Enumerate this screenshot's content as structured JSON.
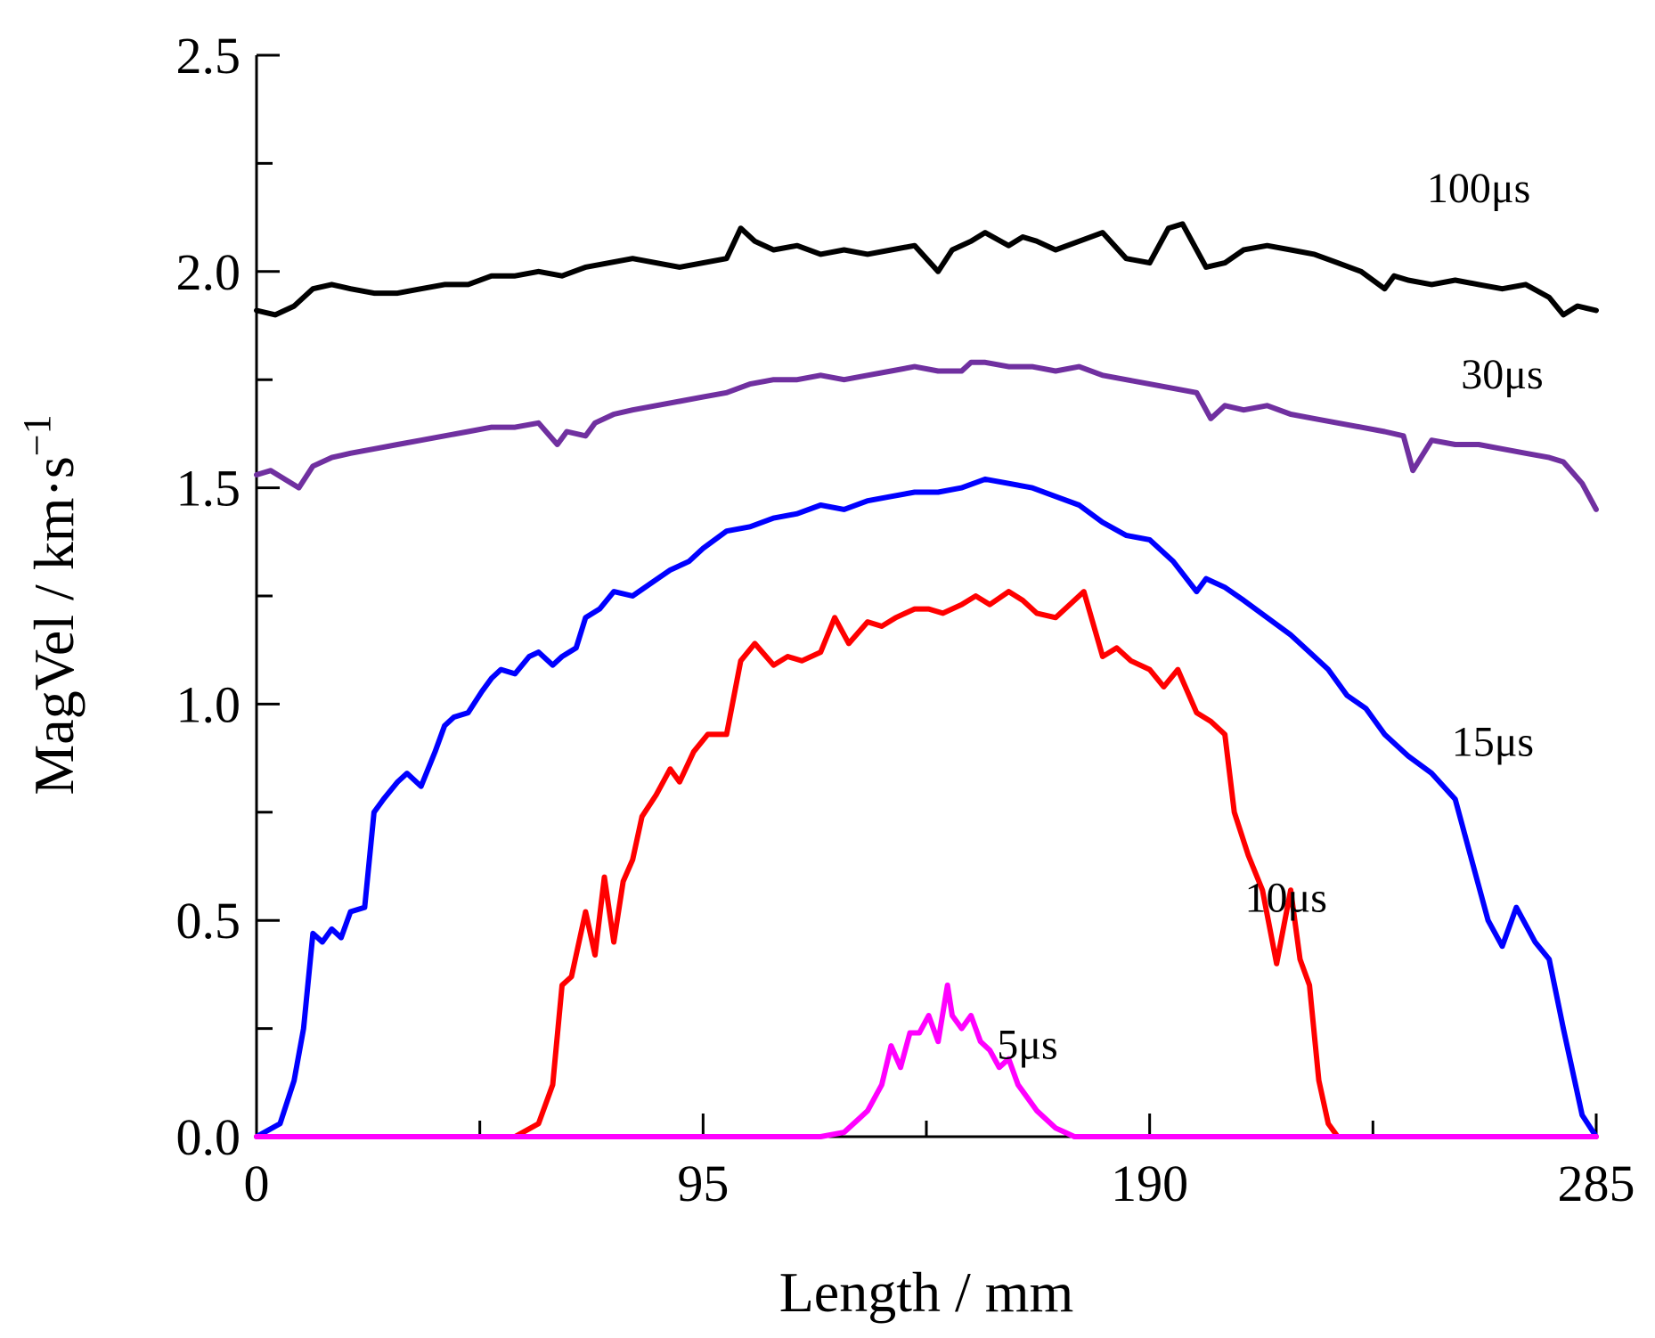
{
  "chart_data": {
    "type": "line",
    "title": "",
    "xlabel": "Length / mm",
    "ylabel": "MagVel / km·s",
    "ylabel_superscript": "−1",
    "xlim": [
      0,
      285
    ],
    "ylim": [
      0,
      2.5
    ],
    "x_ticks": [
      0,
      95,
      190,
      285
    ],
    "x_tick_labels": [
      "0",
      "95",
      "190",
      "285"
    ],
    "x_minor_ticks": [
      47.5,
      142.5,
      237.5
    ],
    "y_ticks": [
      0,
      0.5,
      1.0,
      1.5,
      2.0,
      2.5
    ],
    "y_tick_labels": [
      "0.0",
      "0.5",
      "1.0",
      "1.5",
      "2.0",
      "2.5"
    ],
    "y_minor_ticks": [
      0.25,
      0.75,
      1.25,
      1.75,
      2.25
    ],
    "grid": false,
    "series": [
      {
        "name": "100μs",
        "color": "#000000",
        "label_at": [
          260,
          2.16
        ],
        "x": [
          0,
          4,
          8,
          12,
          16,
          20,
          25,
          30,
          35,
          40,
          45,
          50,
          55,
          60,
          65,
          70,
          75,
          80,
          85,
          90,
          95,
          100,
          103,
          106,
          110,
          115,
          120,
          125,
          130,
          135,
          140,
          145,
          148,
          152,
          155,
          160,
          163,
          166,
          170,
          175,
          180,
          185,
          190,
          194,
          197,
          202,
          206,
          210,
          215,
          220,
          225,
          230,
          235,
          240,
          242,
          245,
          250,
          255,
          260,
          265,
          270,
          275,
          278,
          281,
          285
        ],
        "values": [
          1.91,
          1.9,
          1.92,
          1.96,
          1.97,
          1.96,
          1.95,
          1.95,
          1.96,
          1.97,
          1.97,
          1.99,
          1.99,
          2.0,
          1.99,
          2.01,
          2.02,
          2.03,
          2.02,
          2.01,
          2.02,
          2.03,
          2.1,
          2.07,
          2.05,
          2.06,
          2.04,
          2.05,
          2.04,
          2.05,
          2.06,
          2.0,
          2.05,
          2.07,
          2.09,
          2.06,
          2.08,
          2.07,
          2.05,
          2.07,
          2.09,
          2.03,
          2.02,
          2.1,
          2.11,
          2.01,
          2.02,
          2.05,
          2.06,
          2.05,
          2.04,
          2.02,
          2.0,
          1.96,
          1.99,
          1.98,
          1.97,
          1.98,
          1.97,
          1.96,
          1.97,
          1.94,
          1.9,
          1.92,
          1.91
        ]
      },
      {
        "name": "30μs",
        "color": "#7030a0",
        "label_at": [
          265,
          1.73
        ],
        "x": [
          0,
          3,
          6,
          9,
          12,
          16,
          20,
          25,
          30,
          35,
          40,
          45,
          50,
          55,
          60,
          64,
          66,
          70,
          72,
          76,
          80,
          85,
          90,
          95,
          100,
          105,
          110,
          115,
          120,
          125,
          130,
          135,
          140,
          145,
          150,
          152,
          155,
          160,
          165,
          170,
          175,
          180,
          185,
          190,
          195,
          200,
          203,
          206,
          210,
          215,
          220,
          225,
          230,
          235,
          240,
          244,
          246,
          250,
          255,
          260,
          265,
          270,
          275,
          278,
          282,
          285
        ],
        "values": [
          1.53,
          1.54,
          1.52,
          1.5,
          1.55,
          1.57,
          1.58,
          1.59,
          1.6,
          1.61,
          1.62,
          1.63,
          1.64,
          1.64,
          1.65,
          1.6,
          1.63,
          1.62,
          1.65,
          1.67,
          1.68,
          1.69,
          1.7,
          1.71,
          1.72,
          1.74,
          1.75,
          1.75,
          1.76,
          1.75,
          1.76,
          1.77,
          1.78,
          1.77,
          1.77,
          1.79,
          1.79,
          1.78,
          1.78,
          1.77,
          1.78,
          1.76,
          1.75,
          1.74,
          1.73,
          1.72,
          1.66,
          1.69,
          1.68,
          1.69,
          1.67,
          1.66,
          1.65,
          1.64,
          1.63,
          1.62,
          1.54,
          1.61,
          1.6,
          1.6,
          1.59,
          1.58,
          1.57,
          1.56,
          1.51,
          1.45
        ]
      },
      {
        "name": "15μs",
        "color": "#0000ff",
        "label_at": [
          263,
          0.88
        ],
        "x": [
          0,
          5,
          8,
          10,
          12,
          14,
          16,
          18,
          20,
          23,
          25,
          27,
          30,
          32,
          35,
          38,
          40,
          42,
          45,
          48,
          50,
          52,
          55,
          58,
          60,
          63,
          65,
          68,
          70,
          73,
          76,
          80,
          84,
          88,
          92,
          95,
          100,
          105,
          110,
          115,
          120,
          125,
          130,
          135,
          140,
          145,
          150,
          155,
          160,
          165,
          170,
          175,
          180,
          185,
          190,
          195,
          200,
          202,
          206,
          210,
          215,
          220,
          224,
          228,
          232,
          236,
          240,
          245,
          250,
          255,
          258,
          262,
          265,
          268,
          272,
          275,
          278,
          282,
          285
        ],
        "values": [
          0.0,
          0.03,
          0.13,
          0.25,
          0.47,
          0.45,
          0.48,
          0.46,
          0.52,
          0.53,
          0.75,
          0.78,
          0.82,
          0.84,
          0.81,
          0.89,
          0.95,
          0.97,
          0.98,
          1.03,
          1.06,
          1.08,
          1.07,
          1.11,
          1.12,
          1.09,
          1.11,
          1.13,
          1.2,
          1.22,
          1.26,
          1.25,
          1.28,
          1.31,
          1.33,
          1.36,
          1.4,
          1.41,
          1.43,
          1.44,
          1.46,
          1.45,
          1.47,
          1.48,
          1.49,
          1.49,
          1.5,
          1.52,
          1.51,
          1.5,
          1.48,
          1.46,
          1.42,
          1.39,
          1.38,
          1.33,
          1.26,
          1.29,
          1.27,
          1.24,
          1.2,
          1.16,
          1.12,
          1.08,
          1.02,
          0.99,
          0.93,
          0.88,
          0.84,
          0.78,
          0.66,
          0.5,
          0.44,
          0.53,
          0.45,
          0.41,
          0.25,
          0.05,
          0.0
        ]
      },
      {
        "name": "10μs",
        "color": "#ff0000",
        "label_at": [
          219,
          0.52
        ],
        "x": [
          0,
          40,
          55,
          60,
          63,
          65,
          67,
          70,
          72,
          74,
          76,
          78,
          80,
          82,
          85,
          88,
          90,
          93,
          96,
          100,
          103,
          106,
          110,
          113,
          116,
          120,
          123,
          126,
          130,
          133,
          136,
          140,
          143,
          146,
          150,
          153,
          156,
          160,
          163,
          166,
          170,
          173,
          176,
          180,
          183,
          186,
          190,
          193,
          196,
          200,
          203,
          206,
          208,
          211,
          214,
          217,
          220,
          222,
          224,
          226,
          228,
          230,
          232,
          235,
          240,
          285
        ],
        "values": [
          0.0,
          0.0,
          0.0,
          0.03,
          0.12,
          0.35,
          0.37,
          0.52,
          0.42,
          0.6,
          0.45,
          0.59,
          0.64,
          0.74,
          0.79,
          0.85,
          0.82,
          0.89,
          0.93,
          0.93,
          1.1,
          1.14,
          1.09,
          1.11,
          1.1,
          1.12,
          1.2,
          1.14,
          1.19,
          1.18,
          1.2,
          1.22,
          1.22,
          1.21,
          1.23,
          1.25,
          1.23,
          1.26,
          1.24,
          1.21,
          1.2,
          1.23,
          1.26,
          1.11,
          1.13,
          1.1,
          1.08,
          1.04,
          1.08,
          0.98,
          0.96,
          0.93,
          0.75,
          0.65,
          0.57,
          0.4,
          0.57,
          0.41,
          0.35,
          0.13,
          0.03,
          0.0,
          0.0,
          0.0,
          0.0,
          0.0
        ],
        "note": ""
      },
      {
        "name": "5μs",
        "color": "#ff00ff",
        "label_at": [
          164,
          0.18
        ],
        "x": [
          0,
          120,
          125,
          128,
          130,
          133,
          135,
          137,
          139,
          141,
          143,
          145,
          147,
          148,
          150,
          152,
          154,
          156,
          158,
          160,
          162,
          164,
          166,
          168,
          170,
          172,
          174,
          176,
          178,
          180,
          185,
          285
        ],
        "values": [
          0.0,
          0.0,
          0.01,
          0.04,
          0.06,
          0.12,
          0.21,
          0.16,
          0.24,
          0.24,
          0.28,
          0.22,
          0.35,
          0.28,
          0.25,
          0.28,
          0.22,
          0.2,
          0.16,
          0.18,
          0.12,
          0.09,
          0.06,
          0.04,
          0.02,
          0.01,
          0.0,
          0.0,
          0.0,
          0.0,
          0.0,
          0.0
        ]
      }
    ]
  }
}
